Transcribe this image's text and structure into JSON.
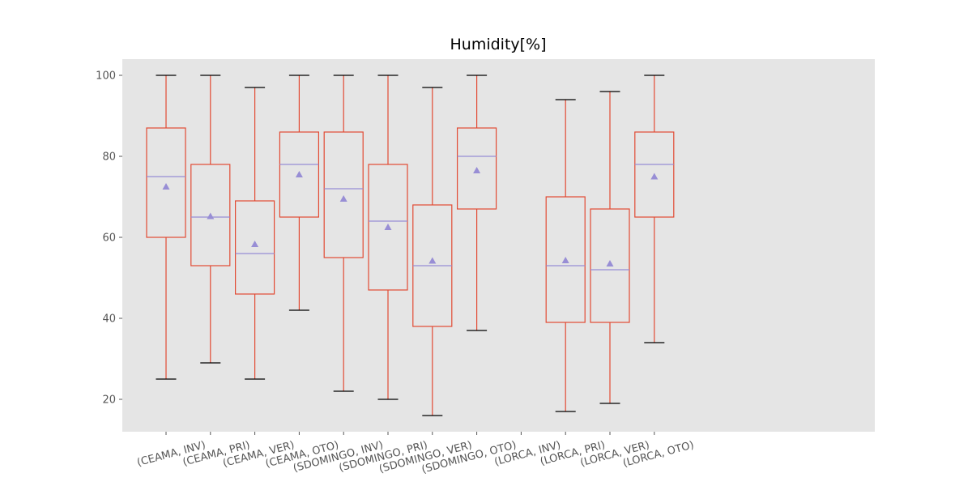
{
  "chart_data": {
    "type": "box",
    "title": "Humidity[%]",
    "xlabel": "",
    "ylabel": "",
    "ylim": [
      12,
      104
    ],
    "yticks": [
      20,
      40,
      60,
      80,
      100
    ],
    "grid": false,
    "background": "#e5e5e5",
    "colors": {
      "box": "#e24a33",
      "median": "#988ed5",
      "mean": "#988ed5",
      "whisker": "#e24a33",
      "cap": "#000000"
    },
    "categories": [
      "(CEAMA, INV)",
      "(CEAMA, PRI)",
      "(CEAMA, VER)",
      "(CEAMA, OTO)",
      "(SDOMINGO, INV)",
      "(SDOMINGO, PRI)",
      "(SDOMINGO, VER)",
      "(SDOMINGO, OTO)",
      "(LORCA, INV)",
      "(LORCA, PRI)",
      "(LORCA, VER)",
      "(LORCA, OTO)"
    ],
    "boxes": [
      {
        "min": 25,
        "q1": 60,
        "median": 75,
        "q3": 87,
        "max": 100,
        "mean": 72.5
      },
      {
        "min": 29,
        "q1": 53,
        "median": 65,
        "q3": 78,
        "max": 100,
        "mean": 65.2
      },
      {
        "min": 25,
        "q1": 46,
        "median": 56,
        "q3": 69,
        "max": 97,
        "mean": 58.3
      },
      {
        "min": 42,
        "q1": 65,
        "median": 78,
        "q3": 86,
        "max": 100,
        "mean": 75.5
      },
      {
        "min": 22,
        "q1": 55,
        "median": 72,
        "q3": 86,
        "max": 100,
        "mean": 69.5
      },
      {
        "min": 20,
        "q1": 47,
        "median": 64,
        "q3": 78,
        "max": 100,
        "mean": 62.5
      },
      {
        "min": 16,
        "q1": 38,
        "median": 53,
        "q3": 68,
        "max": 97,
        "mean": 54.2
      },
      {
        "min": 37,
        "q1": 67,
        "median": 80,
        "q3": 87,
        "max": 100,
        "mean": 76.5
      },
      null,
      {
        "min": 17,
        "q1": 39,
        "median": 53,
        "q3": 70,
        "max": 94,
        "mean": 54.3
      },
      {
        "min": 19,
        "q1": 39,
        "median": 52,
        "q3": 67,
        "max": 96,
        "mean": 53.5
      },
      {
        "min": 34,
        "q1": 65,
        "median": 78,
        "q3": 86,
        "max": 100,
        "mean": 75.0
      }
    ]
  }
}
